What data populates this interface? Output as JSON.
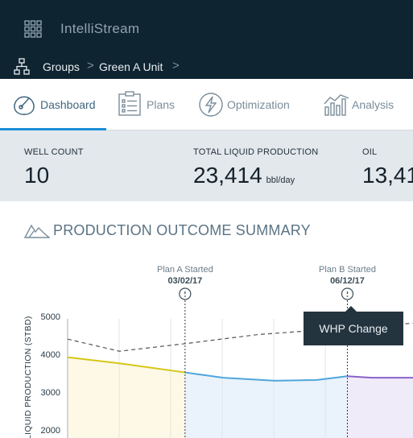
{
  "app": {
    "title": "IntelliStream",
    "apps_icon": "grid-icon",
    "hierarchy_icon": "hierarchy-icon"
  },
  "breadcrumb": {
    "items": [
      "Groups",
      "Green A Unit"
    ],
    "separator": ">"
  },
  "tabs": [
    {
      "label": "Dashboard",
      "icon": "gauge-icon",
      "active": true
    },
    {
      "label": "Plans",
      "icon": "clipboard-icon",
      "active": false
    },
    {
      "label": "Optimization",
      "icon": "lightning-icon",
      "active": false
    },
    {
      "label": "Analysis",
      "icon": "bar-chart-icon",
      "active": false
    }
  ],
  "kpis": [
    {
      "label": "WELL COUNT",
      "value": "10",
      "unit": ""
    },
    {
      "label": "TOTAL LIQUID PRODUCTION",
      "value": "23,414",
      "unit": "bbl/day"
    },
    {
      "label": "OIL",
      "value": "13,41",
      "unit": ""
    }
  ],
  "summary": {
    "title": "PRODUCTION OUTCOME SUMMARY",
    "icon": "mountain-icon"
  },
  "tooltip": {
    "text": "WHP Change"
  },
  "colors": {
    "topbar": "#0f2431",
    "accent": "#1b8fd8",
    "baseline_series": "#d6c616",
    "plan_a_series": "#4fa6dc",
    "plan_b_series": "#8a62c9",
    "target_series": "#555555"
  },
  "chart_data": {
    "type": "line",
    "ylabel": "LIQUID PRODUCTION (STBD)",
    "y_ticks": [
      5000,
      4000,
      3000,
      2000
    ],
    "ylim": [
      1700,
      5300
    ],
    "xlim": [
      0,
      100
    ],
    "grid": true,
    "markers": [
      {
        "name": "Plan A Started",
        "date": "03/02/17",
        "x": 34,
        "icon": "info-icon"
      },
      {
        "name": "Plan B Started",
        "date": "06/12/17",
        "x": 81,
        "icon": "info-icon"
      }
    ],
    "series": [
      {
        "key": "baseline",
        "style": "solid",
        "color": "#d6c616",
        "fill": "#fdf9e6",
        "points": [
          [
            0,
            3920
          ],
          [
            15,
            3760
          ],
          [
            34,
            3520
          ]
        ]
      },
      {
        "key": "plan_a",
        "style": "solid",
        "color": "#4fa6dc",
        "fill": "#eaf3fb",
        "points": [
          [
            34,
            3520
          ],
          [
            45,
            3380
          ],
          [
            60,
            3300
          ],
          [
            72,
            3320
          ],
          [
            81,
            3420
          ]
        ]
      },
      {
        "key": "plan_b",
        "style": "solid",
        "color": "#8a62c9",
        "fill": "#f0ebf8",
        "points": [
          [
            81,
            3420
          ],
          [
            88,
            3380
          ],
          [
            100,
            3380
          ]
        ]
      },
      {
        "key": "target",
        "style": "dashed",
        "color": "#555555",
        "points": [
          [
            0,
            4400
          ],
          [
            15,
            4080
          ],
          [
            34,
            4280
          ],
          [
            55,
            4520
          ],
          [
            70,
            4620
          ],
          [
            100,
            4820
          ]
        ]
      }
    ]
  }
}
